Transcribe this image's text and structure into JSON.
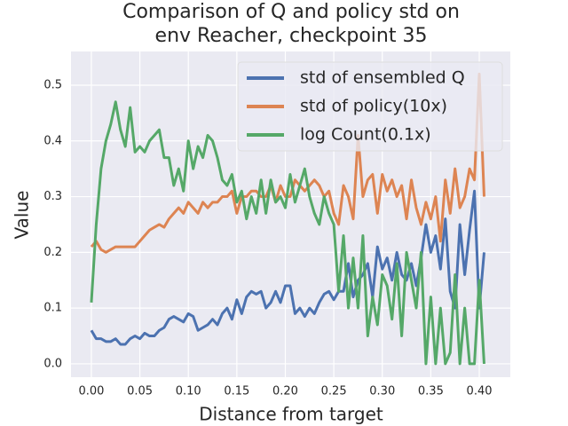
{
  "chart_data": {
    "type": "line",
    "title": [
      "Comparison of Q and policy std on",
      "env Reacher, checkpoint 35"
    ],
    "x_label": "Distance from target",
    "y_label": "Value",
    "x": [
      0,
      0.005,
      0.01,
      0.015,
      0.02,
      0.025,
      0.03,
      0.035,
      0.04,
      0.045,
      0.05,
      0.055,
      0.06,
      0.065,
      0.07,
      0.075,
      0.08,
      0.085,
      0.09,
      0.095,
      0.1,
      0.105,
      0.11,
      0.115,
      0.12,
      0.125,
      0.13,
      0.135,
      0.14,
      0.145,
      0.15,
      0.155,
      0.16,
      0.165,
      0.17,
      0.175,
      0.18,
      0.185,
      0.19,
      0.195,
      0.2,
      0.205,
      0.21,
      0.215,
      0.22,
      0.225,
      0.23,
      0.235,
      0.24,
      0.245,
      0.25,
      0.255,
      0.26,
      0.265,
      0.27,
      0.275,
      0.28,
      0.285,
      0.29,
      0.295,
      0.3,
      0.305,
      0.31,
      0.315,
      0.32,
      0.325,
      0.33,
      0.335,
      0.34,
      0.345,
      0.35,
      0.355,
      0.36,
      0.365,
      0.37,
      0.375,
      0.38,
      0.385,
      0.39,
      0.395,
      0.4,
      0.405
    ],
    "series": [
      {
        "name": "std of ensembled Q",
        "color": "#4c72b0",
        "values": [
          0.06,
          0.045,
          0.045,
          0.04,
          0.04,
          0.045,
          0.035,
          0.035,
          0.045,
          0.05,
          0.045,
          0.055,
          0.05,
          0.05,
          0.06,
          0.065,
          0.08,
          0.085,
          0.08,
          0.075,
          0.09,
          0.085,
          0.06,
          0.065,
          0.07,
          0.08,
          0.07,
          0.09,
          0.1,
          0.08,
          0.115,
          0.09,
          0.12,
          0.13,
          0.125,
          0.13,
          0.1,
          0.11,
          0.13,
          0.11,
          0.14,
          0.14,
          0.09,
          0.1,
          0.085,
          0.1,
          0.09,
          0.11,
          0.125,
          0.13,
          0.115,
          0.13,
          0.13,
          0.18,
          0.12,
          0.15,
          0.16,
          0.18,
          0.12,
          0.21,
          0.17,
          0.19,
          0.15,
          0.2,
          0.16,
          0.15,
          0.18,
          0.14,
          0.19,
          0.25,
          0.2,
          0.23,
          0.17,
          0.26,
          0.13,
          0.1,
          0.25,
          0.16,
          0.24,
          0.31,
          0.1,
          0.2
        ]
      },
      {
        "name": "std of policy(10x)",
        "color": "#dd8452",
        "values": [
          0.21,
          0.22,
          0.205,
          0.2,
          0.205,
          0.21,
          0.21,
          0.21,
          0.21,
          0.21,
          0.22,
          0.23,
          0.24,
          0.245,
          0.25,
          0.245,
          0.26,
          0.27,
          0.28,
          0.27,
          0.29,
          0.28,
          0.27,
          0.29,
          0.28,
          0.29,
          0.29,
          0.3,
          0.3,
          0.31,
          0.27,
          0.3,
          0.3,
          0.31,
          0.31,
          0.3,
          0.3,
          0.32,
          0.29,
          0.32,
          0.3,
          0.3,
          0.33,
          0.32,
          0.31,
          0.32,
          0.33,
          0.32,
          0.3,
          0.31,
          0.27,
          0.25,
          0.32,
          0.3,
          0.26,
          0.41,
          0.3,
          0.33,
          0.34,
          0.27,
          0.34,
          0.31,
          0.33,
          0.3,
          0.32,
          0.26,
          0.33,
          0.28,
          0.25,
          0.29,
          0.26,
          0.3,
          0.22,
          0.33,
          0.27,
          0.35,
          0.28,
          0.3,
          0.35,
          0.33,
          0.52,
          0.3
        ]
      },
      {
        "name": "log Count(0.1x)",
        "color": "#55a868",
        "values": [
          0.11,
          0.25,
          0.35,
          0.4,
          0.43,
          0.47,
          0.42,
          0.39,
          0.46,
          0.38,
          0.39,
          0.38,
          0.4,
          0.41,
          0.42,
          0.37,
          0.37,
          0.32,
          0.35,
          0.31,
          0.4,
          0.35,
          0.39,
          0.37,
          0.41,
          0.4,
          0.37,
          0.33,
          0.32,
          0.34,
          0.29,
          0.31,
          0.26,
          0.3,
          0.27,
          0.33,
          0.27,
          0.33,
          0.29,
          0.3,
          0.28,
          0.34,
          0.29,
          0.32,
          0.35,
          0.3,
          0.27,
          0.25,
          0.3,
          0.27,
          0.25,
          0.13,
          0.23,
          0.1,
          0.19,
          0.1,
          0.23,
          0.05,
          0.12,
          0.07,
          0.16,
          0.14,
          0.08,
          0.18,
          0.05,
          0.2,
          0.15,
          0.1,
          0.2,
          0,
          0.12,
          0,
          0.1,
          0,
          0.02,
          0.16,
          0,
          0.1,
          0,
          0,
          0.15,
          0
        ]
      }
    ],
    "xlim": [
      -0.021,
      0.432
    ],
    "ylim": [
      -0.024,
      0.5605
    ],
    "xticks": [
      {
        "value": 0,
        "label": "0.00"
      },
      {
        "value": 0.05,
        "label": "0.05"
      },
      {
        "value": 0.1,
        "label": "0.10"
      },
      {
        "value": 0.15,
        "label": "0.15"
      },
      {
        "value": 0.2,
        "label": "0.20"
      },
      {
        "value": 0.25,
        "label": "0.25"
      },
      {
        "value": 0.3,
        "label": "0.30"
      },
      {
        "value": 0.35,
        "label": "0.35"
      },
      {
        "value": 0.4,
        "label": "0.40"
      }
    ],
    "yticks": [
      {
        "value": 0,
        "label": "0.0"
      },
      {
        "value": 0.1,
        "label": "0.1"
      },
      {
        "value": 0.2,
        "label": "0.2"
      },
      {
        "value": 0.3,
        "label": "0.3"
      },
      {
        "value": 0.4,
        "label": "0.4"
      },
      {
        "value": 0.5,
        "label": "0.5"
      }
    ],
    "grid": true,
    "legend": "upper right"
  }
}
